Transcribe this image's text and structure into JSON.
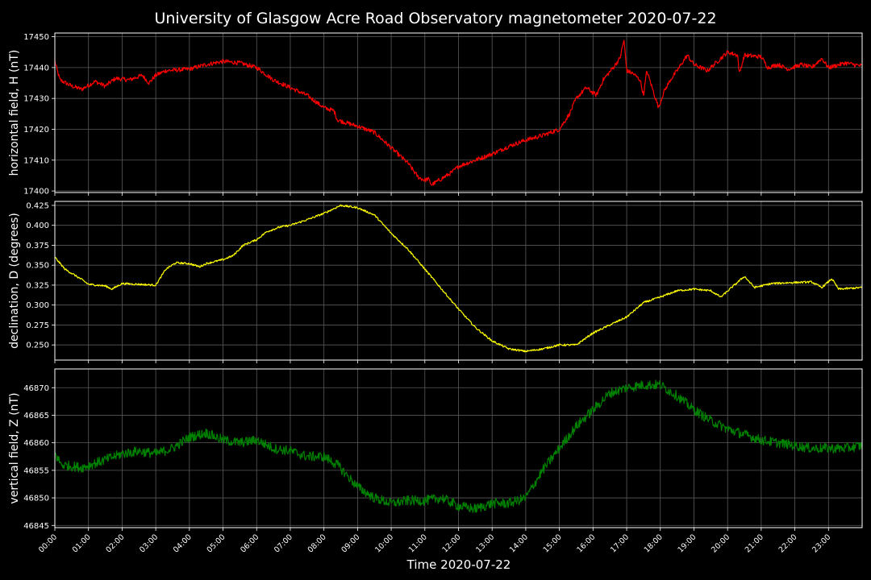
{
  "title": "University of Glasgow Acre Road Observatory magnetometer 2020-07-22",
  "colors": {
    "background": "#000000",
    "foreground": "#ffffff",
    "grid": "#5a5a5a"
  },
  "chart_data": {
    "type": "line",
    "title": "University of Glasgow Acre Road Observatory magnetometer 2020-07-22",
    "shared_x": true,
    "xlabel": "Time 2020-07-22",
    "x_tick_labels": [
      "00:00",
      "01:00",
      "02:00",
      "03:00",
      "04:00",
      "05:00",
      "06:00",
      "07:00",
      "08:00",
      "09:00",
      "10:00",
      "11:00",
      "12:00",
      "13:00",
      "14:00",
      "15:00",
      "16:00",
      "17:00",
      "18:00",
      "19:00",
      "20:00",
      "21:00",
      "22:00",
      "23:00"
    ],
    "xlim_hours": [
      0,
      24
    ],
    "grid": true,
    "panels": [
      {
        "ylabel": "horizontal field, H (nT)",
        "color": "#ff0000",
        "ylim": [
          17399.5,
          17451.2
        ],
        "yticks": [
          17400,
          17410,
          17420,
          17430,
          17440,
          17450
        ],
        "noise": 0.7,
        "points": [
          [
            0,
            17442
          ],
          [
            0.15,
            17436
          ],
          [
            0.5,
            17434
          ],
          [
            0.8,
            17433
          ],
          [
            1.2,
            17435.5
          ],
          [
            1.5,
            17434
          ],
          [
            1.8,
            17436.5
          ],
          [
            2.2,
            17436
          ],
          [
            2.6,
            17437.5
          ],
          [
            2.8,
            17435
          ],
          [
            3.0,
            17437.5
          ],
          [
            3.3,
            17439
          ],
          [
            4.0,
            17439.5
          ],
          [
            4.5,
            17441
          ],
          [
            5.0,
            17442
          ],
          [
            5.5,
            17441.5
          ],
          [
            6.0,
            17440
          ],
          [
            6.5,
            17436
          ],
          [
            7.0,
            17433.5
          ],
          [
            7.5,
            17431
          ],
          [
            8.0,
            17427
          ],
          [
            8.3,
            17426
          ],
          [
            8.4,
            17423
          ],
          [
            9.0,
            17421
          ],
          [
            9.5,
            17419
          ],
          [
            10.0,
            17414
          ],
          [
            10.5,
            17409
          ],
          [
            10.8,
            17404.5
          ],
          [
            11.0,
            17403.5
          ],
          [
            11.1,
            17404
          ],
          [
            11.2,
            17402
          ],
          [
            11.5,
            17404
          ],
          [
            11.8,
            17406
          ],
          [
            12.0,
            17408
          ],
          [
            12.5,
            17410
          ],
          [
            13.0,
            17412
          ],
          [
            13.5,
            17414.5
          ],
          [
            14.0,
            17416.5
          ],
          [
            14.5,
            17418
          ],
          [
            15.0,
            17420
          ],
          [
            15.3,
            17425
          ],
          [
            15.5,
            17430
          ],
          [
            15.8,
            17433.5
          ],
          [
            16.1,
            17431
          ],
          [
            16.3,
            17436
          ],
          [
            16.6,
            17440
          ],
          [
            16.8,
            17443
          ],
          [
            16.92,
            17449
          ],
          [
            17.0,
            17439
          ],
          [
            17.2,
            17438
          ],
          [
            17.4,
            17436
          ],
          [
            17.5,
            17431
          ],
          [
            17.6,
            17439
          ],
          [
            17.8,
            17432
          ],
          [
            17.95,
            17427
          ],
          [
            18.1,
            17432
          ],
          [
            18.3,
            17436
          ],
          [
            18.5,
            17439
          ],
          [
            18.8,
            17444
          ],
          [
            19.0,
            17441
          ],
          [
            19.4,
            17439
          ],
          [
            19.6,
            17441
          ],
          [
            20.0,
            17445
          ],
          [
            20.3,
            17444
          ],
          [
            20.35,
            17438
          ],
          [
            20.5,
            17444
          ],
          [
            21.0,
            17443.5
          ],
          [
            21.2,
            17440
          ],
          [
            21.5,
            17441
          ],
          [
            21.8,
            17439.5
          ],
          [
            22.2,
            17441
          ],
          [
            22.5,
            17440
          ],
          [
            22.8,
            17443
          ],
          [
            23.0,
            17440
          ],
          [
            23.5,
            17441.5
          ],
          [
            24,
            17440.5
          ]
        ]
      },
      {
        "ylabel": "declination, D (degrees)",
        "color": "#ffff00",
        "ylim": [
          0.231,
          0.43
        ],
        "yticks": [
          0.25,
          0.275,
          0.3,
          0.325,
          0.35,
          0.375,
          0.4,
          0.425
        ],
        "tick_labels": [
          "0.250",
          "0.275",
          "0.300",
          "0.325",
          "0.350",
          "0.375",
          "0.400",
          "0.425"
        ],
        "noise": 0.0012,
        "points": [
          [
            0,
            0.36
          ],
          [
            0.3,
            0.345
          ],
          [
            0.8,
            0.332
          ],
          [
            1.0,
            0.326
          ],
          [
            1.5,
            0.324
          ],
          [
            1.7,
            0.32
          ],
          [
            2.0,
            0.327
          ],
          [
            2.5,
            0.326
          ],
          [
            3.0,
            0.325
          ],
          [
            3.3,
            0.345
          ],
          [
            3.6,
            0.353
          ],
          [
            4.0,
            0.352
          ],
          [
            4.3,
            0.348
          ],
          [
            4.5,
            0.352
          ],
          [
            5.0,
            0.357
          ],
          [
            5.3,
            0.362
          ],
          [
            5.6,
            0.375
          ],
          [
            6.0,
            0.382
          ],
          [
            6.3,
            0.392
          ],
          [
            6.7,
            0.398
          ],
          [
            7.0,
            0.4
          ],
          [
            7.5,
            0.407
          ],
          [
            8.0,
            0.415
          ],
          [
            8.5,
            0.425
          ],
          [
            9.0,
            0.422
          ],
          [
            9.5,
            0.413
          ],
          [
            10.0,
            0.39
          ],
          [
            10.5,
            0.37
          ],
          [
            11.0,
            0.345
          ],
          [
            11.5,
            0.32
          ],
          [
            12.0,
            0.295
          ],
          [
            12.5,
            0.272
          ],
          [
            13.0,
            0.255
          ],
          [
            13.5,
            0.245
          ],
          [
            14.0,
            0.242
          ],
          [
            14.5,
            0.245
          ],
          [
            15.0,
            0.25
          ],
          [
            15.5,
            0.25
          ],
          [
            16.0,
            0.265
          ],
          [
            16.5,
            0.275
          ],
          [
            17.0,
            0.285
          ],
          [
            17.5,
            0.303
          ],
          [
            18.0,
            0.31
          ],
          [
            18.5,
            0.318
          ],
          [
            19.0,
            0.32
          ],
          [
            19.5,
            0.318
          ],
          [
            19.8,
            0.31
          ],
          [
            20.2,
            0.325
          ],
          [
            20.5,
            0.336
          ],
          [
            20.8,
            0.322
          ],
          [
            21.3,
            0.327
          ],
          [
            21.8,
            0.328
          ],
          [
            22.5,
            0.329
          ],
          [
            22.8,
            0.322
          ],
          [
            23.1,
            0.333
          ],
          [
            23.3,
            0.32
          ],
          [
            24,
            0.322
          ]
        ]
      },
      {
        "ylabel": "vertical field, Z (nT)",
        "color": "#008000",
        "ylim": [
          46844.6,
          46873.4
        ],
        "yticks": [
          46845,
          46850,
          46855,
          46860,
          46865,
          46870
        ],
        "noise": 0.9,
        "points": [
          [
            0,
            46858
          ],
          [
            0.2,
            46856
          ],
          [
            0.8,
            46855.5
          ],
          [
            1.3,
            46856.5
          ],
          [
            2.0,
            46858
          ],
          [
            2.5,
            46858.5
          ],
          [
            3.0,
            46858
          ],
          [
            3.5,
            46859
          ],
          [
            4.0,
            46861
          ],
          [
            4.5,
            46861.8
          ],
          [
            5.0,
            46860.5
          ],
          [
            5.5,
            46860
          ],
          [
            6.0,
            46860.5
          ],
          [
            6.5,
            46859
          ],
          [
            7.0,
            46858.5
          ],
          [
            7.5,
            46857.5
          ],
          [
            8.0,
            46857.5
          ],
          [
            8.4,
            46856
          ],
          [
            9.0,
            46852
          ],
          [
            9.5,
            46850
          ],
          [
            10.0,
            46849
          ],
          [
            10.5,
            46849.5
          ],
          [
            11.0,
            46849.5
          ],
          [
            11.5,
            46850
          ],
          [
            12.0,
            46848.5
          ],
          [
            12.5,
            46848
          ],
          [
            13.0,
            46849
          ],
          [
            13.5,
            46849
          ],
          [
            14.0,
            46850
          ],
          [
            14.5,
            46855
          ],
          [
            15.0,
            46859
          ],
          [
            15.5,
            46863
          ],
          [
            16.0,
            46866
          ],
          [
            16.5,
            46869
          ],
          [
            17.0,
            46870
          ],
          [
            17.5,
            46870.5
          ],
          [
            18.0,
            46870.5
          ],
          [
            18.5,
            46868.5
          ],
          [
            19.0,
            46866
          ],
          [
            19.5,
            46864
          ],
          [
            20.0,
            46862.5
          ],
          [
            20.5,
            46861.5
          ],
          [
            21.0,
            46860.5
          ],
          [
            21.5,
            46860
          ],
          [
            22.0,
            46859.5
          ],
          [
            22.5,
            46859
          ],
          [
            23.0,
            46859
          ],
          [
            23.5,
            46859
          ],
          [
            24,
            46859.5
          ]
        ]
      }
    ]
  }
}
